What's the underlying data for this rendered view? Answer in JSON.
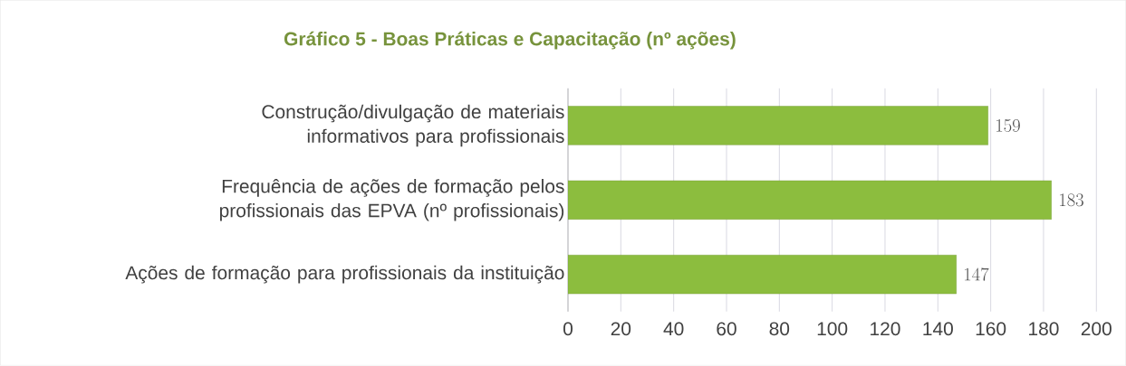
{
  "chart_data": {
    "type": "bar",
    "orientation": "horizontal",
    "title": "Gráfico 5 - Boas Práticas e Capacitação (nº ações)",
    "categories": [
      "Construção/divulgação de materiais informativos para profissionais",
      "Frequência de ações de formação pelos profissionais das EPVA (nº profissionais)",
      "Ações de formação para profissionais da instituição"
    ],
    "values": [
      159,
      183,
      147
    ],
    "color": "#8cbd3e",
    "xlim": [
      0,
      200
    ],
    "xticks": [
      0,
      20,
      40,
      60,
      80,
      100,
      120,
      140,
      160,
      180,
      200
    ],
    "grid": "x",
    "data_labels": true
  }
}
